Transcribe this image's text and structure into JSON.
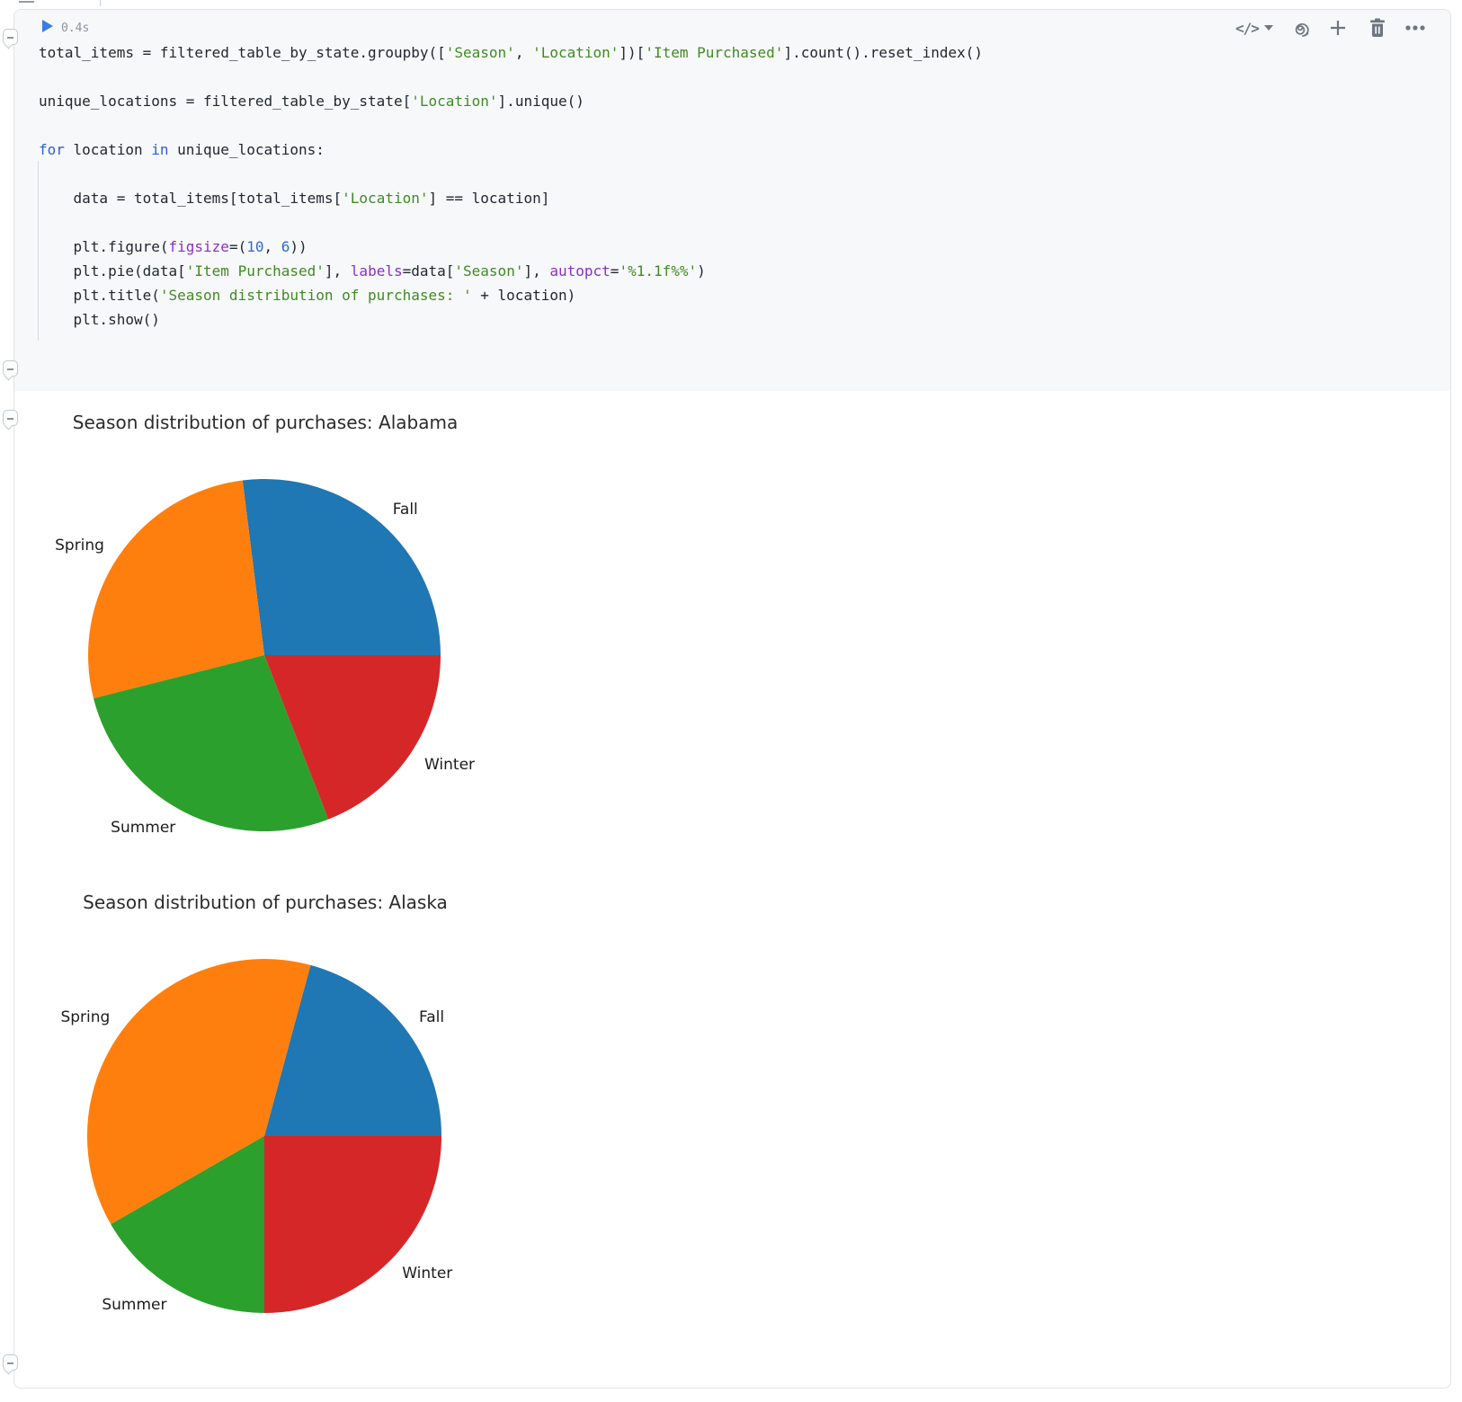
{
  "cell": {
    "execution": {
      "time_label": "0.4s",
      "status_icon": "run-play-icon"
    },
    "toolbar": {
      "items": [
        {
          "name": "cell-language",
          "icon": "code-icon",
          "label": "</>",
          "has_dropdown": true
        },
        {
          "name": "generate",
          "icon": "spiral-icon"
        },
        {
          "name": "add-cell",
          "icon": "plus-icon"
        },
        {
          "name": "delete-cell",
          "icon": "trash-icon"
        },
        {
          "name": "more-actions",
          "icon": "ellipsis-icon"
        }
      ]
    },
    "gutter": {
      "collapse_handles": 4,
      "icon": "collapse-handle-minus-icon"
    },
    "code": {
      "language": "python",
      "lines": [
        [
          {
            "t": "total_items = filtered_table_by_state.groupby([",
            "s": "d"
          },
          {
            "t": "'Season'",
            "s": "str"
          },
          {
            "t": ", ",
            "s": "d"
          },
          {
            "t": "'Location'",
            "s": "str"
          },
          {
            "t": "])[",
            "s": "d"
          },
          {
            "t": "'Item Purchased'",
            "s": "str"
          },
          {
            "t": "].count().reset_index()",
            "s": "d"
          }
        ],
        [],
        [
          {
            "t": "unique_locations = filtered_table_by_state[",
            "s": "d"
          },
          {
            "t": "'Location'",
            "s": "str"
          },
          {
            "t": "].unique()",
            "s": "d"
          }
        ],
        [],
        [
          {
            "t": "for",
            "s": "kw"
          },
          {
            "t": " location ",
            "s": "d"
          },
          {
            "t": "in",
            "s": "kw"
          },
          {
            "t": " unique_locations:",
            "s": "d"
          }
        ],
        [],
        [
          {
            "t": "    data = total_items[total_items[",
            "s": "d"
          },
          {
            "t": "'Location'",
            "s": "str"
          },
          {
            "t": "] == location]",
            "s": "d"
          }
        ],
        [],
        [
          {
            "t": "    plt.figure(",
            "s": "d"
          },
          {
            "t": "figsize",
            "s": "pa"
          },
          {
            "t": "=(",
            "s": "d"
          },
          {
            "t": "10",
            "s": "num"
          },
          {
            "t": ", ",
            "s": "d"
          },
          {
            "t": "6",
            "s": "num"
          },
          {
            "t": "))",
            "s": "d"
          }
        ],
        [
          {
            "t": "    plt.pie(data[",
            "s": "d"
          },
          {
            "t": "'Item Purchased'",
            "s": "str"
          },
          {
            "t": "], ",
            "s": "d"
          },
          {
            "t": "labels",
            "s": "pa"
          },
          {
            "t": "=data[",
            "s": "d"
          },
          {
            "t": "'Season'",
            "s": "str"
          },
          {
            "t": "], ",
            "s": "d"
          },
          {
            "t": "autopct",
            "s": "pa"
          },
          {
            "t": "=",
            "s": "d"
          },
          {
            "t": "'%1.1f%%'",
            "s": "str"
          },
          {
            "t": ")",
            "s": "d"
          }
        ],
        [
          {
            "t": "    plt.title(",
            "s": "d"
          },
          {
            "t": "'Season distribution of purchases: '",
            "s": "str"
          },
          {
            "t": " + location)",
            "s": "d"
          }
        ],
        [
          {
            "t": "    plt.show()",
            "s": "d"
          }
        ]
      ]
    }
  },
  "charts": [
    {
      "title": "Season distribution of purchases: Alabama",
      "chart_data": {
        "type": "pie",
        "labels": [
          "Fall",
          "Spring",
          "Summer",
          "Winter"
        ],
        "values": [
          27.0,
          27.0,
          27.0,
          19.1
        ],
        "percent_labels": [
          "27.0%",
          "27.0%",
          "27.0%",
          "19.1%"
        ],
        "colors": [
          "#1f77b4",
          "#ff7f0e",
          "#2ca02c",
          "#d62728"
        ],
        "start_angle": 0,
        "direction": "counterclockwise",
        "label_distance": 1.1,
        "pct_distance": 0.6,
        "legend": false
      }
    },
    {
      "title": "Season distribution of purchases: Alaska",
      "chart_data": {
        "type": "pie",
        "labels": [
          "Fall",
          "Spring",
          "Summer",
          "Winter"
        ],
        "values": [
          20.8,
          37.5,
          16.7,
          25.0
        ],
        "percent_labels": [
          "20.8%",
          "37.5%",
          "16.7%",
          "25.0%"
        ],
        "colors": [
          "#1f77b4",
          "#ff7f0e",
          "#2ca02c",
          "#d62728"
        ],
        "start_angle": 0,
        "direction": "counterclockwise",
        "label_distance": 1.1,
        "pct_distance": 0.6,
        "legend": false
      }
    }
  ]
}
